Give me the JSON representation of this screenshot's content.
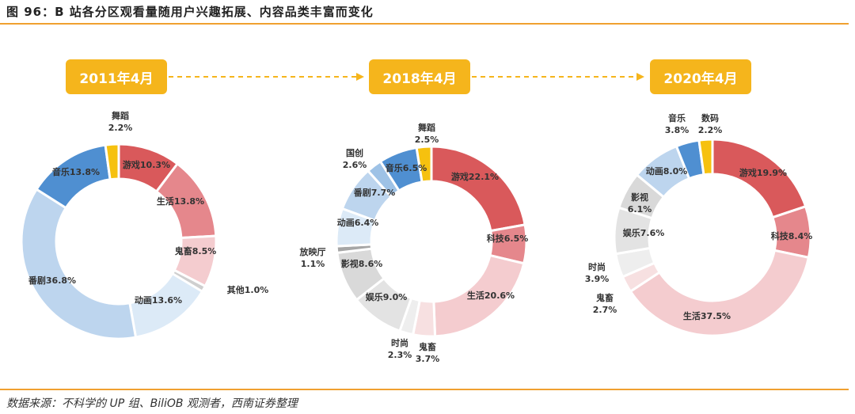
{
  "header": {
    "title": "图 96：B 站各分区观看量随用户兴趣拓展、内容品类丰富而变化"
  },
  "footer": {
    "source": "数据来源：不科学的 UP 组、BiliOB 观测者，西南证券整理"
  },
  "periods": [
    "2011年4月",
    "2018年4月",
    "2020年4月"
  ],
  "colors": {
    "accent": "#f5b51c",
    "rule": "#f0a030",
    "arrow": "#f5b51c"
  },
  "chart_data": [
    {
      "type": "pie",
      "title": "2011年4月",
      "donut": true,
      "slices": [
        {
          "label": "游戏",
          "value": 10.3,
          "color": "#d9595b"
        },
        {
          "label": "生活",
          "value": 13.8,
          "color": "#e5878c"
        },
        {
          "label": "鬼畜",
          "value": 8.5,
          "color": "#f4cccf"
        },
        {
          "label": "其他",
          "value": 1.0,
          "color": "#cfcfcf"
        },
        {
          "label": "动画",
          "value": 13.6,
          "color": "#dceaf7"
        },
        {
          "label": "番剧",
          "value": 36.8,
          "color": "#bdd5ee"
        },
        {
          "label": "音乐",
          "value": 13.8,
          "color": "#4f8fd1"
        },
        {
          "label": "舞蹈",
          "value": 2.2,
          "color": "#f6c10f"
        }
      ]
    },
    {
      "type": "pie",
      "title": "2018年4月",
      "donut": true,
      "slices": [
        {
          "label": "游戏",
          "value": 22.1,
          "color": "#d9595b"
        },
        {
          "label": "科技",
          "value": 6.5,
          "color": "#e5878c"
        },
        {
          "label": "生活",
          "value": 20.6,
          "color": "#f4cccf"
        },
        {
          "label": "鬼畜",
          "value": 3.7,
          "color": "#f7e0e1"
        },
        {
          "label": "时尚",
          "value": 2.3,
          "color": "#eeeeee"
        },
        {
          "label": "娱乐",
          "value": 9.0,
          "color": "#e3e3e3"
        },
        {
          "label": "影视",
          "value": 8.6,
          "color": "#d9d9d9"
        },
        {
          "label": "放映厅",
          "value": 1.1,
          "color": "#a6a6a6"
        },
        {
          "label": "动画",
          "value": 6.4,
          "color": "#dceaf7"
        },
        {
          "label": "番剧",
          "value": 7.7,
          "color": "#bdd5ee"
        },
        {
          "label": "国创",
          "value": 2.6,
          "color": "#9ec2e6"
        },
        {
          "label": "音乐",
          "value": 6.5,
          "color": "#4f8fd1"
        },
        {
          "label": "舞蹈",
          "value": 2.5,
          "color": "#f6c10f"
        }
      ]
    },
    {
      "type": "pie",
      "title": "2020年4月",
      "donut": true,
      "slices": [
        {
          "label": "游戏",
          "value": 19.9,
          "color": "#d9595b"
        },
        {
          "label": "科技",
          "value": 8.4,
          "color": "#e5878c"
        },
        {
          "label": "生活",
          "value": 37.5,
          "color": "#f4cccf"
        },
        {
          "label": "鬼畜",
          "value": 2.7,
          "color": "#f7e0e1"
        },
        {
          "label": "时尚",
          "value": 3.9,
          "color": "#eeeeee"
        },
        {
          "label": "娱乐",
          "value": 7.6,
          "color": "#e3e3e3"
        },
        {
          "label": "影视",
          "value": 6.1,
          "color": "#d9d9d9"
        },
        {
          "label": "动画",
          "value": 8.0,
          "color": "#bdd5ee"
        },
        {
          "label": "音乐",
          "value": 3.8,
          "color": "#4f8fd1"
        },
        {
          "label": "数码",
          "value": 2.2,
          "color": "#f6c10f"
        }
      ]
    }
  ]
}
